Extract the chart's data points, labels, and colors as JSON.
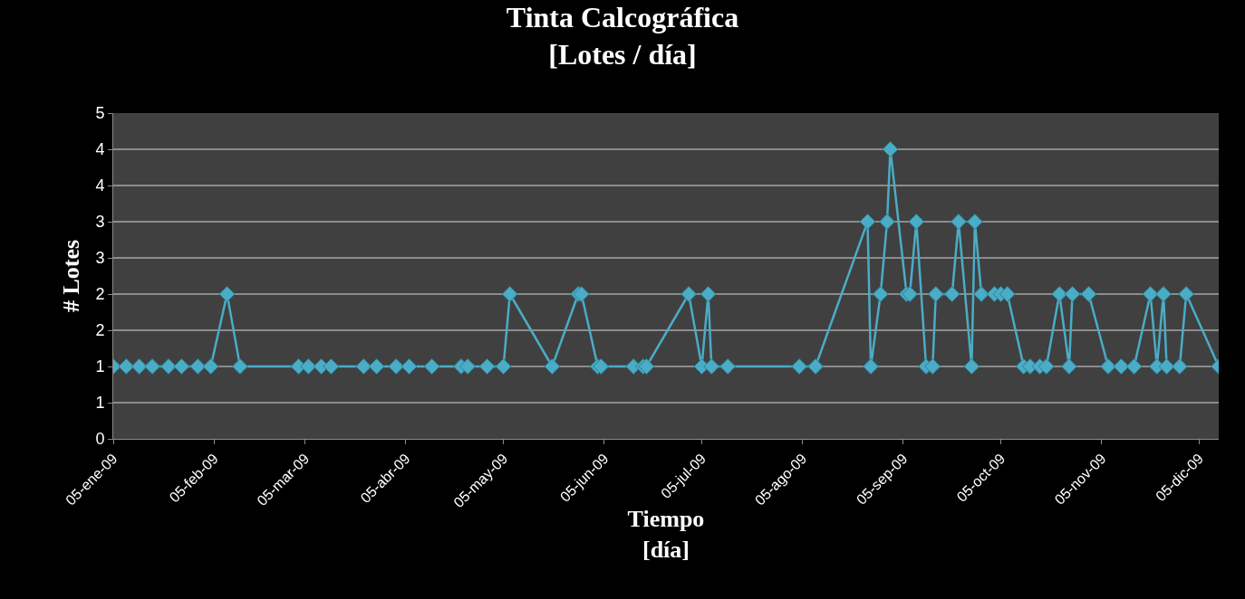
{
  "chart_data": {
    "type": "line",
    "title": "Tinta Calcográfica\n[Lotes / día]",
    "xlabel": "Tiempo\n[día]",
    "ylabel": "# Lotes",
    "x": [
      "2009-01-05",
      "2009-01-09",
      "2009-01-13",
      "2009-01-17",
      "2009-01-22",
      "2009-01-26",
      "2009-01-31",
      "2009-02-04",
      "2009-02-09",
      "2009-02-13",
      "2009-03-03",
      "2009-03-06",
      "2009-03-10",
      "2009-03-13",
      "2009-03-23",
      "2009-03-27",
      "2009-04-02",
      "2009-04-06",
      "2009-04-13",
      "2009-04-22",
      "2009-04-24",
      "2009-04-30",
      "2009-05-05",
      "2009-05-07",
      "2009-05-20",
      "2009-05-28",
      "2009-05-29",
      "2009-06-03",
      "2009-06-04",
      "2009-06-14",
      "2009-06-17",
      "2009-06-18",
      "2009-07-01",
      "2009-07-05",
      "2009-07-07",
      "2009-07-08",
      "2009-07-13",
      "2009-08-04",
      "2009-08-09",
      "2009-08-25",
      "2009-08-26",
      "2009-08-29",
      "2009-08-31",
      "2009-09-01",
      "2009-09-06",
      "2009-09-07",
      "2009-09-09",
      "2009-09-12",
      "2009-09-14",
      "2009-09-15",
      "2009-09-20",
      "2009-09-22",
      "2009-09-26",
      "2009-09-27",
      "2009-09-29",
      "2009-10-03",
      "2009-10-05",
      "2009-10-07",
      "2009-10-12",
      "2009-10-14",
      "2009-10-17",
      "2009-10-19",
      "2009-10-23",
      "2009-10-26",
      "2009-10-27",
      "2009-11-01",
      "2009-11-07",
      "2009-11-11",
      "2009-11-15",
      "2009-11-20",
      "2009-11-22",
      "2009-11-24",
      "2009-11-25",
      "2009-11-29",
      "2009-12-01",
      "2009-12-11"
    ],
    "series": [
      {
        "color": "#4bacc6",
        "values": [
          1,
          1,
          1,
          1,
          1,
          1,
          1,
          1,
          2,
          1,
          1,
          1,
          1,
          1,
          1,
          1,
          1,
          1,
          1,
          1,
          1,
          1,
          1,
          2,
          1,
          2,
          2,
          1,
          1,
          1,
          1,
          1,
          2,
          1,
          2,
          1,
          1,
          1,
          1,
          3,
          1,
          2,
          3,
          4,
          2,
          2,
          3,
          1,
          1,
          2,
          2,
          3,
          1,
          3,
          2,
          2,
          2,
          2,
          1,
          1,
          1,
          1,
          2,
          1,
          2,
          2,
          1,
          1,
          1,
          2,
          1,
          2,
          1,
          1,
          2,
          1
        ]
      }
    ],
    "xlim": [
      "2009-01-05",
      "2009-12-11"
    ],
    "xticks": [
      {
        "value": "2009-01-05",
        "label": "05-ene-09"
      },
      {
        "value": "2009-02-05",
        "label": "05-feb-09"
      },
      {
        "value": "2009-03-05",
        "label": "05-mar-09"
      },
      {
        "value": "2009-04-05",
        "label": "05-abr-09"
      },
      {
        "value": "2009-05-05",
        "label": "05-may-09"
      },
      {
        "value": "2009-06-05",
        "label": "05-jun-09"
      },
      {
        "value": "2009-07-05",
        "label": "05-jul-09"
      },
      {
        "value": "2009-08-05",
        "label": "05-ago-09"
      },
      {
        "value": "2009-09-05",
        "label": "05-sep-09"
      },
      {
        "value": "2009-10-05",
        "label": "05-oct-09"
      },
      {
        "value": "2009-11-05",
        "label": "05-nov-09"
      },
      {
        "value": "2009-12-05",
        "label": "05-dic-09"
      }
    ],
    "ylim": [
      0,
      4.5
    ],
    "yticks": [
      0,
      {
        "value": 0.5,
        "label": "1"
      },
      1,
      {
        "value": 1.5,
        "label": "2"
      },
      2,
      {
        "value": 2.5,
        "label": "3"
      },
      3,
      {
        "value": 3.5,
        "label": "4"
      },
      4,
      {
        "value": 4.5,
        "label": "5"
      }
    ],
    "grid": "y",
    "marker": "diamond",
    "line_style": "solid"
  }
}
